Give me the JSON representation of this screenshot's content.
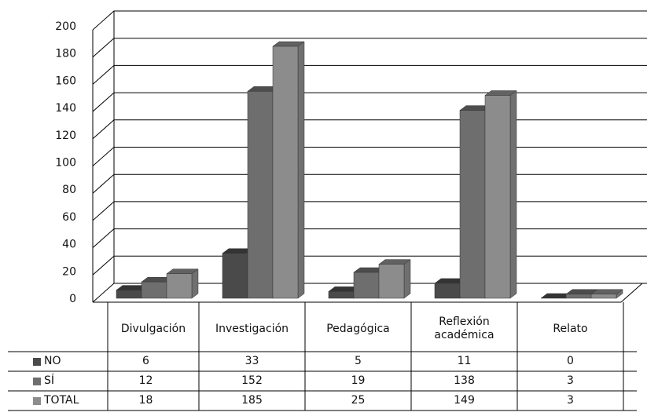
{
  "chart_data": {
    "type": "bar3d",
    "categories": [
      "Divulgación",
      "Investigación",
      "Pedagógica",
      "Reflexión académica",
      "Relato"
    ],
    "series": [
      {
        "name": "NO",
        "color": "#4a4a4a",
        "values": [
          6,
          33,
          5,
          11,
          0
        ]
      },
      {
        "name": "SÍ",
        "color": "#6e6e6e",
        "values": [
          12,
          152,
          19,
          138,
          3
        ]
      },
      {
        "name": "TOTAL",
        "color": "#8c8c8c",
        "values": [
          18,
          185,
          25,
          149,
          3
        ]
      }
    ],
    "ylim": [
      0,
      200
    ],
    "yticks": [
      0,
      20,
      40,
      60,
      80,
      100,
      120,
      140,
      160,
      180,
      200
    ],
    "grid": true
  }
}
